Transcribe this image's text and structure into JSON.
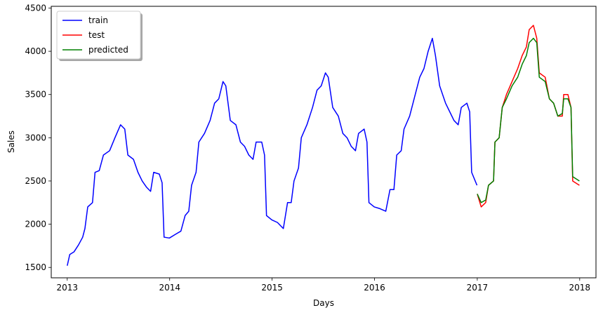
{
  "chart_data": {
    "type": "line",
    "xlabel": "Days",
    "ylabel": "Sales",
    "xlim": [
      "2012-11-05",
      "2018-02-28"
    ],
    "ylim": [
      1380,
      4520
    ],
    "xticks": [
      {
        "date": "2013-01-01",
        "label": "2013"
      },
      {
        "date": "2014-01-01",
        "label": "2014"
      },
      {
        "date": "2015-01-01",
        "label": "2015"
      },
      {
        "date": "2016-01-01",
        "label": "2016"
      },
      {
        "date": "2017-01-01",
        "label": "2017"
      },
      {
        "date": "2018-01-01",
        "label": "2018"
      }
    ],
    "yticks": [
      1500,
      2000,
      2500,
      3000,
      3500,
      4000,
      4500
    ],
    "grid": false,
    "legend": "top-left",
    "series": [
      {
        "name": "train",
        "color": "#0000ff",
        "points": [
          [
            "2013-01-01",
            1520
          ],
          [
            "2013-01-10",
            1650
          ],
          [
            "2013-01-25",
            1680
          ],
          [
            "2013-02-10",
            1760
          ],
          [
            "2013-02-25",
            1850
          ],
          [
            "2013-03-05",
            1950
          ],
          [
            "2013-03-15",
            2200
          ],
          [
            "2013-04-01",
            2250
          ],
          [
            "2013-04-10",
            2600
          ],
          [
            "2013-04-25",
            2620
          ],
          [
            "2013-05-10",
            2800
          ],
          [
            "2013-06-01",
            2850
          ],
          [
            "2013-06-20",
            3000
          ],
          [
            "2013-07-10",
            3150
          ],
          [
            "2013-07-25",
            3100
          ],
          [
            "2013-08-05",
            2800
          ],
          [
            "2013-08-25",
            2750
          ],
          [
            "2013-09-10",
            2600
          ],
          [
            "2013-09-25",
            2500
          ],
          [
            "2013-10-10",
            2430
          ],
          [
            "2013-10-25",
            2380
          ],
          [
            "2013-11-05",
            2600
          ],
          [
            "2013-11-25",
            2580
          ],
          [
            "2013-12-05",
            2480
          ],
          [
            "2013-12-12",
            1850
          ],
          [
            "2013-12-31",
            1840
          ],
          [
            "2014-01-20",
            1880
          ],
          [
            "2014-02-10",
            1920
          ],
          [
            "2014-02-25",
            2100
          ],
          [
            "2014-03-10",
            2150
          ],
          [
            "2014-03-20",
            2450
          ],
          [
            "2014-04-05",
            2600
          ],
          [
            "2014-04-15",
            2950
          ],
          [
            "2014-05-05",
            3050
          ],
          [
            "2014-05-25",
            3200
          ],
          [
            "2014-06-10",
            3400
          ],
          [
            "2014-06-25",
            3450
          ],
          [
            "2014-07-10",
            3650
          ],
          [
            "2014-07-20",
            3600
          ],
          [
            "2014-08-05",
            3200
          ],
          [
            "2014-08-25",
            3150
          ],
          [
            "2014-09-10",
            2950
          ],
          [
            "2014-09-25",
            2900
          ],
          [
            "2014-10-10",
            2800
          ],
          [
            "2014-10-25",
            2750
          ],
          [
            "2014-11-05",
            2950
          ],
          [
            "2014-11-25",
            2950
          ],
          [
            "2014-12-05",
            2800
          ],
          [
            "2014-12-12",
            2100
          ],
          [
            "2014-12-31",
            2050
          ],
          [
            "2015-01-20",
            2020
          ],
          [
            "2015-02-10",
            1950
          ],
          [
            "2015-02-25",
            2250
          ],
          [
            "2015-03-10",
            2250
          ],
          [
            "2015-03-20",
            2500
          ],
          [
            "2015-04-05",
            2650
          ],
          [
            "2015-04-15",
            3000
          ],
          [
            "2015-05-05",
            3150
          ],
          [
            "2015-05-25",
            3350
          ],
          [
            "2015-06-10",
            3550
          ],
          [
            "2015-06-25",
            3600
          ],
          [
            "2015-07-10",
            3750
          ],
          [
            "2015-07-20",
            3700
          ],
          [
            "2015-08-05",
            3350
          ],
          [
            "2015-08-25",
            3250
          ],
          [
            "2015-09-10",
            3050
          ],
          [
            "2015-09-25",
            3000
          ],
          [
            "2015-10-10",
            2900
          ],
          [
            "2015-10-25",
            2850
          ],
          [
            "2015-11-05",
            3050
          ],
          [
            "2015-11-25",
            3100
          ],
          [
            "2015-12-05",
            2950
          ],
          [
            "2015-12-12",
            2250
          ],
          [
            "2015-12-31",
            2200
          ],
          [
            "2016-01-20",
            2180
          ],
          [
            "2016-02-10",
            2150
          ],
          [
            "2016-02-25",
            2400
          ],
          [
            "2016-03-10",
            2400
          ],
          [
            "2016-03-20",
            2800
          ],
          [
            "2016-04-05",
            2850
          ],
          [
            "2016-04-15",
            3100
          ],
          [
            "2016-05-05",
            3250
          ],
          [
            "2016-05-25",
            3500
          ],
          [
            "2016-06-10",
            3700
          ],
          [
            "2016-06-25",
            3800
          ],
          [
            "2016-07-10",
            4000
          ],
          [
            "2016-07-25",
            4150
          ],
          [
            "2016-08-05",
            3950
          ],
          [
            "2016-08-20",
            3600
          ],
          [
            "2016-09-10",
            3400
          ],
          [
            "2016-09-25",
            3300
          ],
          [
            "2016-10-10",
            3200
          ],
          [
            "2016-10-25",
            3150
          ],
          [
            "2016-11-05",
            3350
          ],
          [
            "2016-11-25",
            3400
          ],
          [
            "2016-12-05",
            3300
          ],
          [
            "2016-12-12",
            2600
          ],
          [
            "2016-12-31",
            2450
          ]
        ]
      },
      {
        "name": "test",
        "color": "#ff0000",
        "points": [
          [
            "2017-01-01",
            2350
          ],
          [
            "2017-01-15",
            2200
          ],
          [
            "2017-01-31",
            2250
          ],
          [
            "2017-02-10",
            2450
          ],
          [
            "2017-02-28",
            2500
          ],
          [
            "2017-03-05",
            2950
          ],
          [
            "2017-03-20",
            3000
          ],
          [
            "2017-03-31",
            3350
          ],
          [
            "2017-04-15",
            3500
          ],
          [
            "2017-05-05",
            3650
          ],
          [
            "2017-05-25",
            3800
          ],
          [
            "2017-06-10",
            3950
          ],
          [
            "2017-06-25",
            4050
          ],
          [
            "2017-07-05",
            4250
          ],
          [
            "2017-07-20",
            4300
          ],
          [
            "2017-08-01",
            4150
          ],
          [
            "2017-08-10",
            3750
          ],
          [
            "2017-08-31",
            3700
          ],
          [
            "2017-09-15",
            3450
          ],
          [
            "2017-09-30",
            3400
          ],
          [
            "2017-10-15",
            3250
          ],
          [
            "2017-10-31",
            3250
          ],
          [
            "2017-11-05",
            3500
          ],
          [
            "2017-11-20",
            3500
          ],
          [
            "2017-12-01",
            3350
          ],
          [
            "2017-12-07",
            2500
          ],
          [
            "2017-12-31",
            2450
          ]
        ]
      },
      {
        "name": "predicted",
        "color": "#008000",
        "points": [
          [
            "2017-01-01",
            2350
          ],
          [
            "2017-01-15",
            2250
          ],
          [
            "2017-01-31",
            2280
          ],
          [
            "2017-02-10",
            2450
          ],
          [
            "2017-02-28",
            2500
          ],
          [
            "2017-03-05",
            2950
          ],
          [
            "2017-03-20",
            3000
          ],
          [
            "2017-03-31",
            3350
          ],
          [
            "2017-04-15",
            3450
          ],
          [
            "2017-05-05",
            3600
          ],
          [
            "2017-05-25",
            3700
          ],
          [
            "2017-06-10",
            3850
          ],
          [
            "2017-06-25",
            3950
          ],
          [
            "2017-07-05",
            4100
          ],
          [
            "2017-07-20",
            4150
          ],
          [
            "2017-08-01",
            4100
          ],
          [
            "2017-08-10",
            3700
          ],
          [
            "2017-08-31",
            3650
          ],
          [
            "2017-09-15",
            3450
          ],
          [
            "2017-09-30",
            3400
          ],
          [
            "2017-10-15",
            3250
          ],
          [
            "2017-10-31",
            3280
          ],
          [
            "2017-11-05",
            3450
          ],
          [
            "2017-11-20",
            3450
          ],
          [
            "2017-12-01",
            3350
          ],
          [
            "2017-12-07",
            2550
          ],
          [
            "2017-12-31",
            2500
          ]
        ]
      }
    ]
  }
}
